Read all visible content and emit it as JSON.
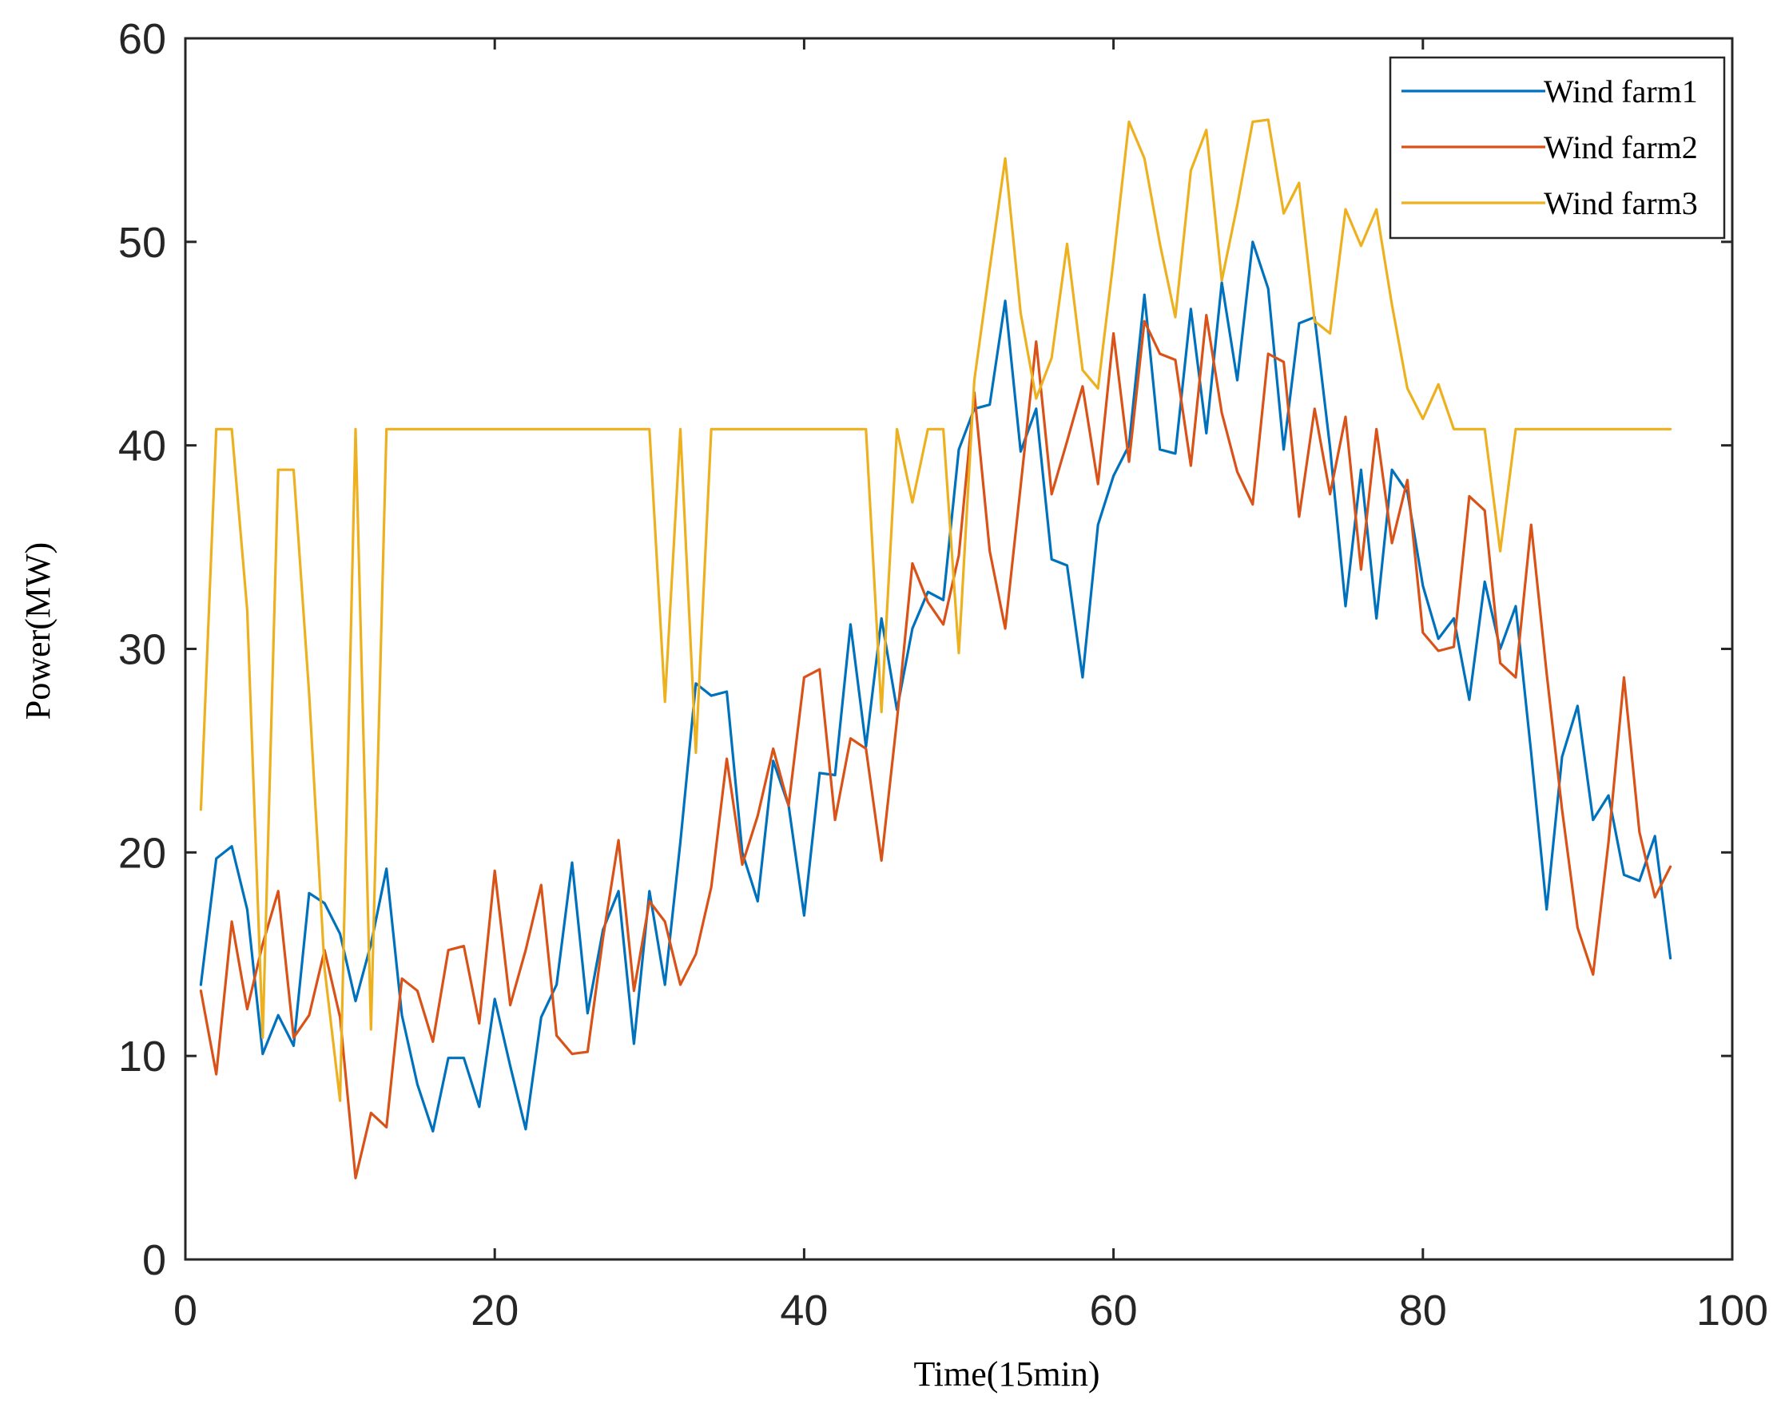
{
  "chart_data": {
    "type": "line",
    "title": "",
    "xlabel": "Time(15min)",
    "ylabel": "Power(MW)",
    "xlim": [
      0,
      100
    ],
    "ylim": [
      0,
      60
    ],
    "xticks": [
      0,
      20,
      40,
      60,
      80,
      100
    ],
    "yticks": [
      0,
      10,
      20,
      30,
      40,
      50,
      60
    ],
    "grid": false,
    "legend_position": "top-right",
    "x": [
      1,
      2,
      3,
      4,
      5,
      6,
      7,
      8,
      9,
      10,
      11,
      12,
      13,
      14,
      15,
      16,
      17,
      18,
      19,
      20,
      21,
      22,
      23,
      24,
      25,
      26,
      27,
      28,
      29,
      30,
      31,
      32,
      33,
      34,
      35,
      36,
      37,
      38,
      39,
      40,
      41,
      42,
      43,
      44,
      45,
      46,
      47,
      48,
      49,
      50,
      51,
      52,
      53,
      54,
      55,
      56,
      57,
      58,
      59,
      60,
      61,
      62,
      63,
      64,
      65,
      66,
      67,
      68,
      69,
      70,
      71,
      72,
      73,
      74,
      75,
      76,
      77,
      78,
      79,
      80,
      81,
      82,
      83,
      84,
      85,
      86,
      87,
      88,
      89,
      90,
      91,
      92,
      93,
      94,
      95,
      96
    ],
    "series": [
      {
        "name": "Wind farm1",
        "color": "#0072BD",
        "values": [
          13.5,
          19.7,
          20.3,
          17.2,
          10.1,
          12,
          10.5,
          18,
          17.5,
          16,
          12.7,
          15.5,
          19.2,
          12,
          8.6,
          6.3,
          9.9,
          9.9,
          7.5,
          12.8,
          9.5,
          6.4,
          11.9,
          13.5,
          19.5,
          12.1,
          16.2,
          18.1,
          10.6,
          18.1,
          13.5,
          20.5,
          28.3,
          27.7,
          27.9,
          20,
          17.6,
          24.5,
          22.3,
          16.9,
          23.9,
          23.8,
          31.2,
          25.2,
          31.5,
          27,
          31,
          32.8,
          32.4,
          39.8,
          41.8,
          42,
          47.1,
          39.7,
          41.8,
          34.4,
          34.1,
          28.6,
          36.1,
          38.5,
          40,
          47.4,
          39.8,
          39.6,
          46.7,
          40.6,
          48,
          43.2,
          50,
          47.7,
          39.8,
          46,
          46.3,
          39.9,
          32.1,
          38.8,
          31.5,
          38.8,
          37.7,
          33.1,
          30.5,
          31.5,
          27.5,
          33.3,
          30,
          32.1,
          24.9,
          17.2,
          24.7,
          27.2,
          21.6,
          22.8,
          18.9,
          18.6,
          20.8,
          14.8
        ]
      },
      {
        "name": "Wind farm2",
        "color": "#D95319",
        "values": [
          13.2,
          9.1,
          16.6,
          12.3,
          15.5,
          18.1,
          10.9,
          12,
          15.2,
          11.9,
          4,
          7.2,
          6.5,
          13.8,
          13.2,
          10.7,
          15.2,
          15.4,
          11.6,
          19.1,
          12.5,
          15.2,
          18.4,
          11,
          10.1,
          10.2,
          15.8,
          20.6,
          13.2,
          17.6,
          16.6,
          13.5,
          15,
          18.3,
          24.6,
          19.4,
          21.8,
          25.1,
          22.3,
          28.6,
          29,
          21.6,
          25.6,
          25.1,
          19.6,
          26.5,
          34.2,
          32.3,
          31.2,
          34.6,
          42.6,
          34.8,
          31,
          38,
          45.1,
          37.6,
          40.2,
          42.9,
          38.1,
          45.5,
          39.2,
          46.1,
          44.5,
          44.2,
          39,
          46.4,
          41.6,
          38.7,
          37.1,
          44.5,
          44.1,
          36.5,
          41.8,
          37.6,
          41.4,
          33.9,
          40.8,
          35.2,
          38.3,
          30.8,
          29.9,
          30.1,
          37.5,
          36.8,
          29.3,
          28.6,
          36.1,
          28.8,
          22.1,
          16.3,
          14,
          20.5,
          28.6,
          21,
          17.8,
          19.3
        ]
      },
      {
        "name": "Wind farm3",
        "color": "#EDB120",
        "values": [
          22.1,
          40.8,
          40.8,
          31.9,
          10.9,
          38.8,
          38.8,
          27.8,
          14.3,
          7.8,
          40.8,
          11.3,
          40.8,
          40.8,
          40.8,
          40.8,
          40.8,
          40.8,
          40.8,
          40.8,
          40.8,
          40.8,
          40.8,
          40.8,
          40.8,
          40.8,
          40.8,
          40.8,
          40.8,
          40.8,
          27.4,
          40.8,
          24.9,
          40.8,
          40.8,
          40.8,
          40.8,
          40.8,
          40.8,
          40.8,
          40.8,
          40.8,
          40.8,
          40.8,
          26.9,
          40.8,
          37.2,
          40.8,
          40.8,
          29.8,
          43.2,
          48.7,
          54.1,
          46.5,
          42.3,
          44.3,
          49.9,
          43.7,
          42.8,
          49.1,
          55.9,
          54.1,
          49.9,
          46.3,
          53.5,
          55.5,
          48.1,
          51.8,
          55.9,
          56,
          51.4,
          52.9,
          46.1,
          45.5,
          51.6,
          49.8,
          51.6,
          46.9,
          42.8,
          41.3,
          43,
          40.8,
          40.8,
          40.8,
          34.8,
          40.8,
          40.8,
          40.8,
          40.8,
          40.8,
          40.8,
          40.8,
          40.8,
          40.8,
          40.8,
          40.8
        ]
      }
    ]
  }
}
